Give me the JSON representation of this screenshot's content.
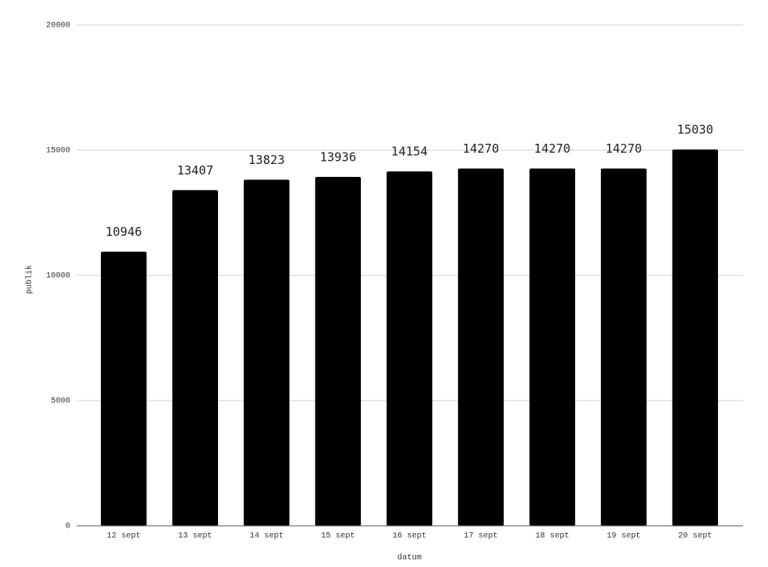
{
  "chart_data": {
    "type": "bar",
    "x_label": "datum",
    "y_label": "publik",
    "categories": [
      "12 sept",
      "13 sept",
      "14 sept",
      "15 sept",
      "16 sept",
      "17 sept",
      "18 sept",
      "19 sept",
      "20 sept"
    ],
    "values": [
      10946,
      13407,
      13823,
      13936,
      14154,
      14270,
      14270,
      14270,
      15030
    ],
    "color": "#000000",
    "ylim": [
      0,
      20000
    ],
    "yticks": [
      0,
      5000,
      10000,
      15000,
      20000
    ],
    "grid": true
  }
}
